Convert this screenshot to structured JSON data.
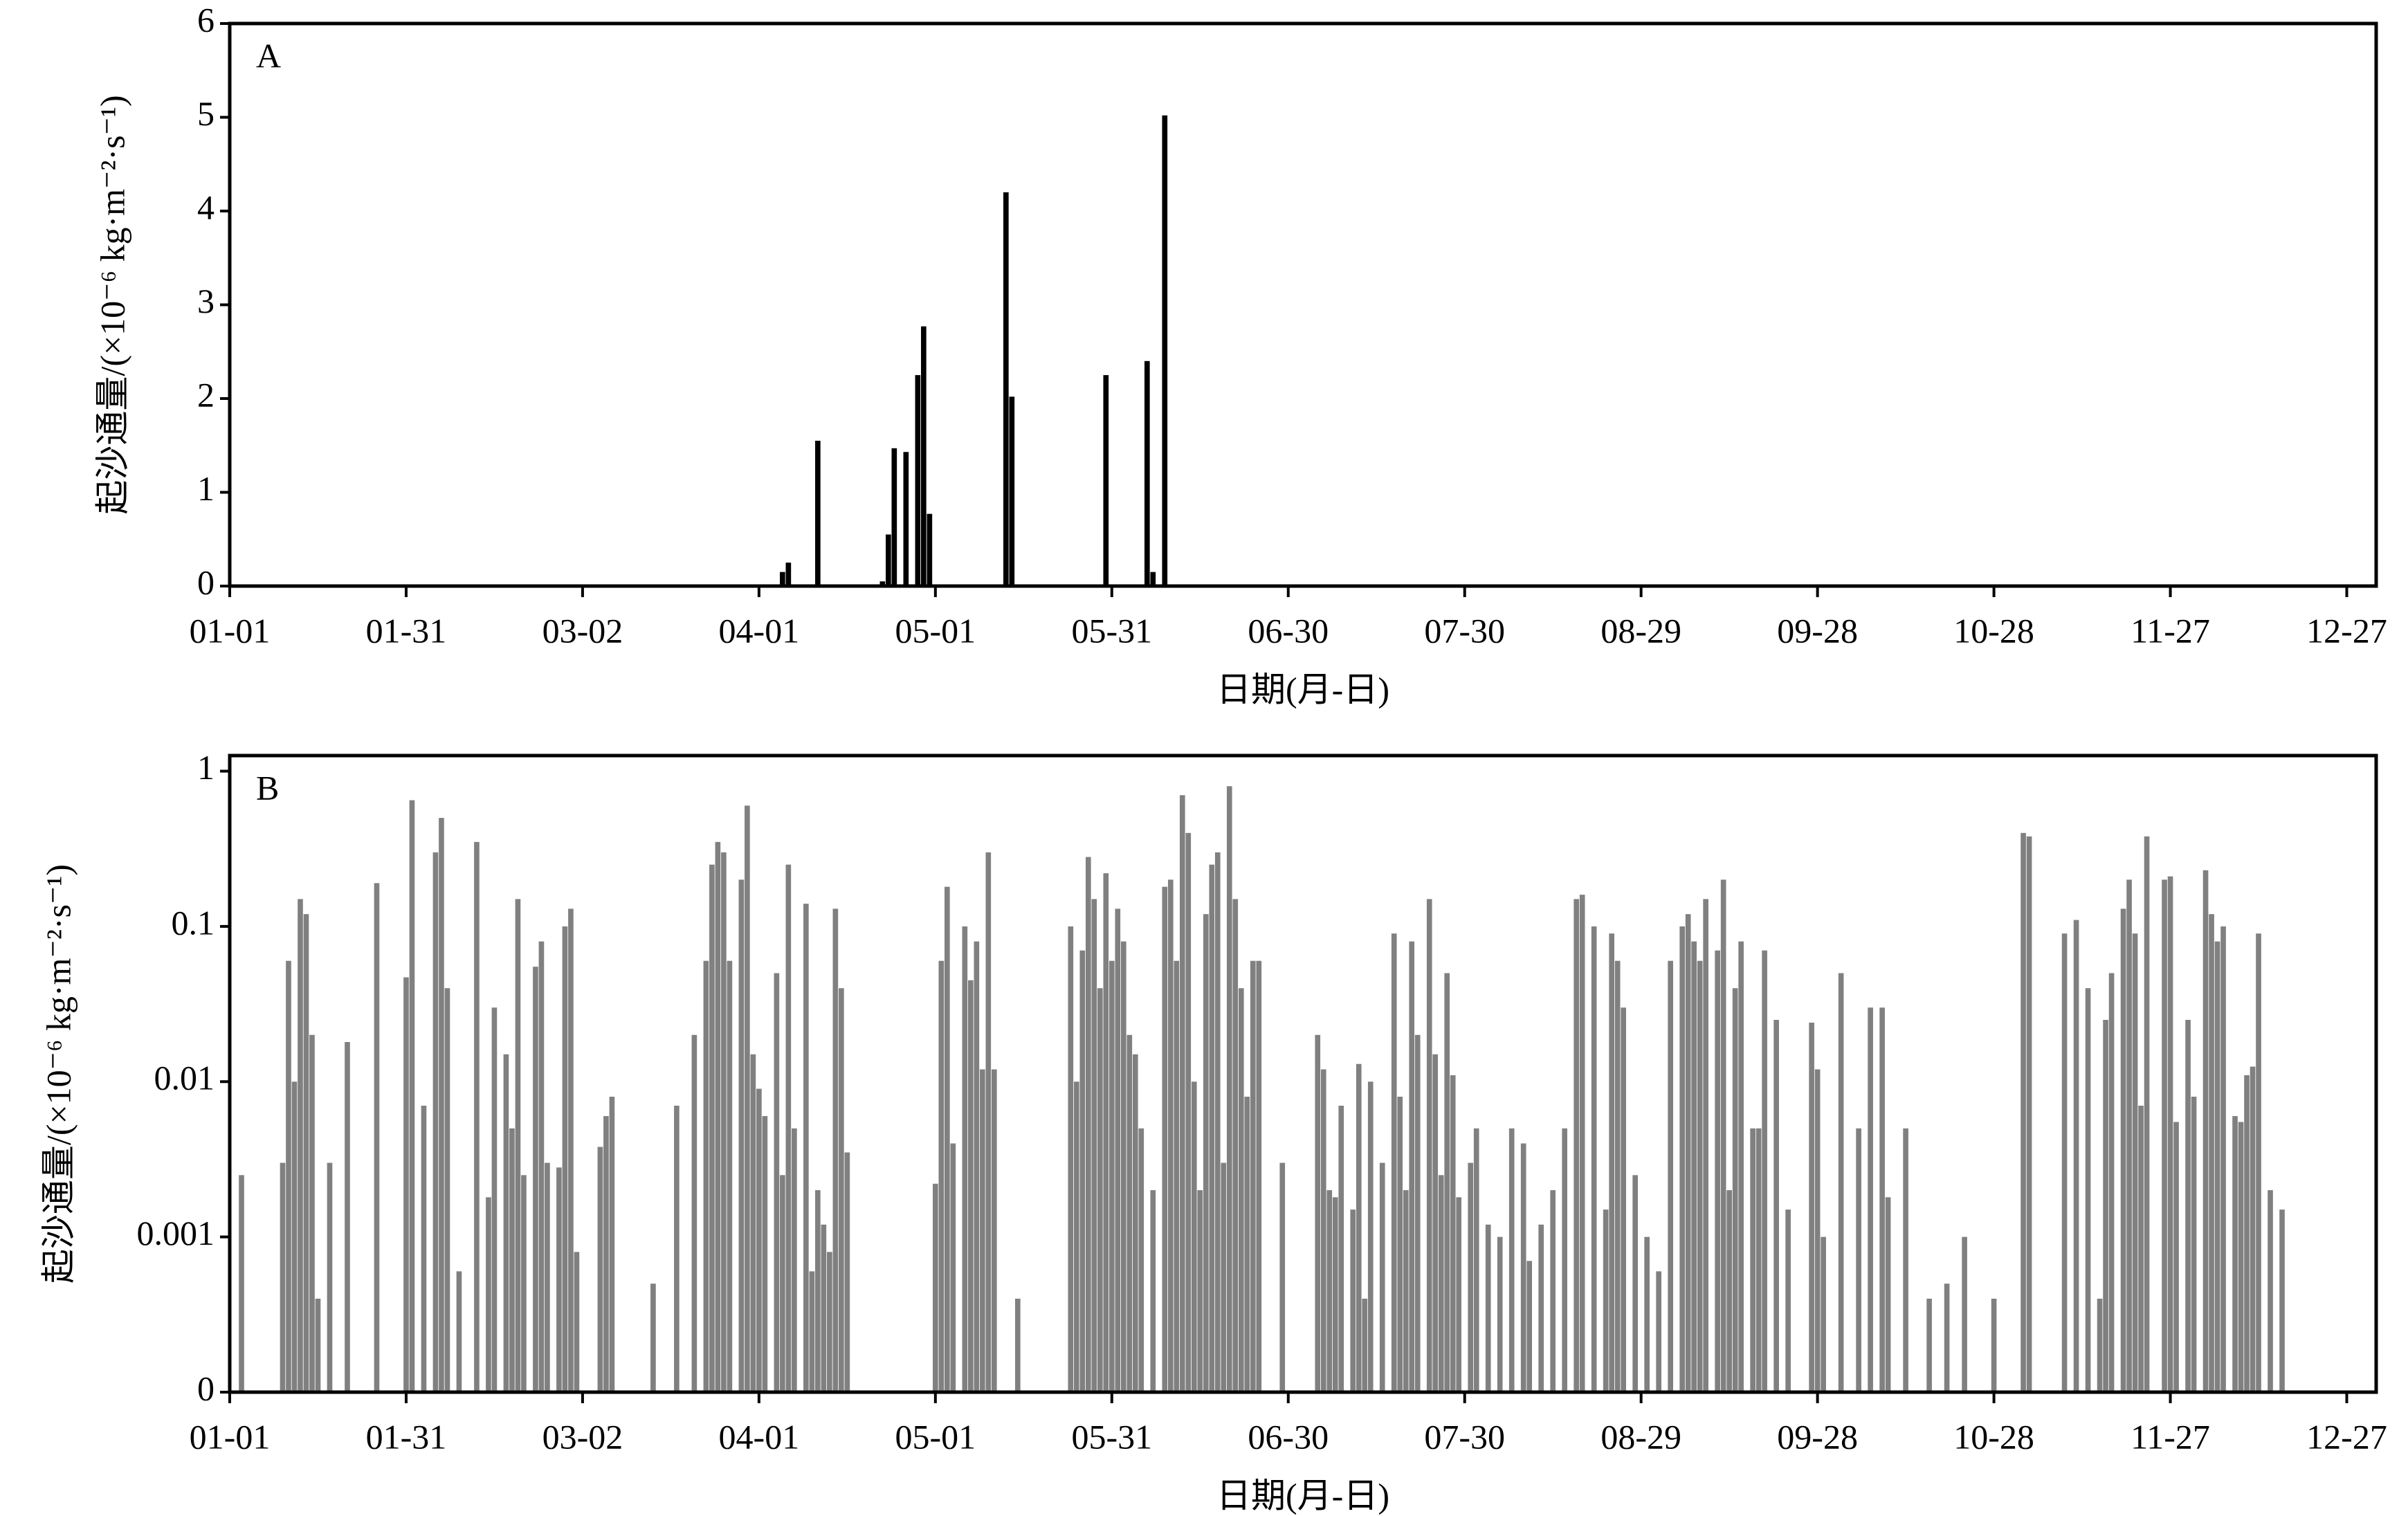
{
  "chart_data": [
    {
      "type": "bar",
      "label": "A",
      "xlabel": "日期(月-日)",
      "ylabel": "起沙通量/(×10⁻⁶ kg·m⁻²·s⁻¹)",
      "color": "#000000",
      "log_scale": false,
      "xlim": [
        1,
        366
      ],
      "ylim": [
        0,
        6
      ],
      "yticks": [
        0,
        1,
        2,
        3,
        4,
        5,
        6
      ],
      "xticks": [
        {
          "value": 1,
          "label": "01-01"
        },
        {
          "value": 31,
          "label": "01-31"
        },
        {
          "value": 61,
          "label": "03-02"
        },
        {
          "value": 91,
          "label": "04-01"
        },
        {
          "value": 121,
          "label": "05-01"
        },
        {
          "value": 151,
          "label": "05-31"
        },
        {
          "value": 181,
          "label": "06-30"
        },
        {
          "value": 211,
          "label": "07-30"
        },
        {
          "value": 241,
          "label": "08-29"
        },
        {
          "value": 271,
          "label": "09-28"
        },
        {
          "value": 301,
          "label": "10-28"
        },
        {
          "value": 331,
          "label": "11-27"
        },
        {
          "value": 361,
          "label": "12-27"
        }
      ],
      "x": [
        95,
        96,
        101,
        112,
        113,
        114,
        116,
        118,
        119,
        120,
        133,
        134,
        150,
        157,
        158,
        160
      ],
      "values": [
        0.15,
        0.25,
        1.55,
        0.05,
        0.55,
        1.47,
        1.43,
        2.25,
        2.77,
        0.77,
        4.2,
        2.02,
        2.25,
        2.4,
        0.15,
        5.02
      ]
    },
    {
      "type": "bar",
      "label": "B",
      "xlabel": "日期(月-日)",
      "ylabel": "起沙通量/(×10⁻⁶ kg·m⁻²·s⁻¹)",
      "color": "#808080",
      "log_scale": true,
      "xlim": [
        1,
        366
      ],
      "ylim": [
        0.0001,
        1.26
      ],
      "yticks": [
        {
          "value": 0.0001,
          "label": "0"
        },
        0.001,
        0.01,
        0.1,
        1
      ],
      "xticks": [
        {
          "value": 1,
          "label": "01-01"
        },
        {
          "value": 31,
          "label": "01-31"
        },
        {
          "value": 61,
          "label": "03-02"
        },
        {
          "value": 91,
          "label": "04-01"
        },
        {
          "value": 121,
          "label": "05-01"
        },
        {
          "value": 151,
          "label": "05-31"
        },
        {
          "value": 181,
          "label": "06-30"
        },
        {
          "value": 211,
          "label": "07-30"
        },
        {
          "value": 241,
          "label": "08-29"
        },
        {
          "value": 271,
          "label": "09-28"
        },
        {
          "value": 301,
          "label": "10-28"
        },
        {
          "value": 331,
          "label": "11-27"
        },
        {
          "value": 361,
          "label": "12-27"
        }
      ],
      "x": [
        3,
        10,
        11,
        12,
        13,
        14,
        15,
        16,
        18,
        21,
        26,
        31,
        32,
        34,
        36,
        37,
        38,
        40,
        43,
        45,
        46,
        48,
        49,
        50,
        51,
        53,
        54,
        55,
        57,
        58,
        59,
        60,
        64,
        65,
        66,
        73,
        77,
        80,
        82,
        83,
        84,
        85,
        86,
        88,
        89,
        90,
        91,
        92,
        94,
        95,
        96,
        97,
        99,
        100,
        101,
        102,
        103,
        104,
        105,
        106,
        121,
        122,
        123,
        124,
        126,
        127,
        128,
        129,
        130,
        131,
        135,
        144,
        145,
        146,
        147,
        148,
        149,
        150,
        151,
        152,
        153,
        154,
        155,
        156,
        158,
        160,
        161,
        162,
        163,
        164,
        165,
        166,
        167,
        168,
        169,
        170,
        171,
        172,
        173,
        174,
        175,
        176,
        180,
        186,
        187,
        188,
        189,
        190,
        192,
        193,
        194,
        195,
        197,
        199,
        200,
        201,
        202,
        203,
        205,
        206,
        207,
        208,
        209,
        210,
        212,
        213,
        215,
        217,
        219,
        221,
        222,
        224,
        226,
        228,
        230,
        231,
        233,
        235,
        236,
        237,
        238,
        240,
        242,
        244,
        246,
        248,
        249,
        250,
        251,
        252,
        254,
        255,
        256,
        257,
        258,
        260,
        261,
        262,
        264,
        266,
        270,
        271,
        272,
        275,
        278,
        280,
        282,
        283,
        286,
        290,
        293,
        296,
        301,
        306,
        307,
        313,
        315,
        317,
        319,
        320,
        321,
        323,
        324,
        325,
        326,
        327,
        330,
        331,
        332,
        334,
        335,
        337,
        338,
        339,
        340,
        342,
        343,
        344,
        345,
        346,
        348,
        350
      ],
      "values": [
        0.0025,
        0.003,
        0.06,
        0.01,
        0.15,
        0.12,
        0.02,
        0.0004,
        0.003,
        0.018,
        0.19,
        0.047,
        0.65,
        0.007,
        0.3,
        0.5,
        0.04,
        0.0006,
        0.35,
        0.0018,
        0.03,
        0.015,
        0.005,
        0.15,
        0.0025,
        0.055,
        0.08,
        0.003,
        0.0028,
        0.1,
        0.13,
        0.0008,
        0.0038,
        0.006,
        0.008,
        0.0005,
        0.007,
        0.02,
        0.06,
        0.25,
        0.35,
        0.3,
        0.06,
        0.2,
        0.6,
        0.015,
        0.009,
        0.006,
        0.05,
        0.0025,
        0.25,
        0.005,
        0.14,
        0.0006,
        0.002,
        0.0012,
        0.0008,
        0.13,
        0.04,
        0.0035,
        0.0022,
        0.06,
        0.18,
        0.004,
        0.1,
        0.045,
        0.08,
        0.012,
        0.3,
        0.012,
        0.0004,
        0.1,
        0.01,
        0.07,
        0.28,
        0.15,
        0.04,
        0.22,
        0.06,
        0.13,
        0.08,
        0.02,
        0.015,
        0.005,
        0.002,
        0.18,
        0.2,
        0.06,
        0.7,
        0.4,
        0.01,
        0.002,
        0.12,
        0.25,
        0.3,
        0.003,
        0.8,
        0.15,
        0.04,
        0.008,
        0.06,
        0.06,
        0.003,
        0.02,
        0.012,
        0.002,
        0.0018,
        0.007,
        0.0015,
        0.013,
        0.0004,
        0.01,
        0.003,
        0.09,
        0.008,
        0.002,
        0.08,
        0.02,
        0.15,
        0.015,
        0.0025,
        0.05,
        0.011,
        0.0018,
        0.003,
        0.005,
        0.0012,
        0.001,
        0.005,
        0.004,
        0.0007,
        0.0012,
        0.002,
        0.005,
        0.15,
        0.16,
        0.1,
        0.0015,
        0.09,
        0.06,
        0.03,
        0.0025,
        0.001,
        0.0006,
        0.06,
        0.1,
        0.12,
        0.08,
        0.06,
        0.15,
        0.07,
        0.2,
        0.002,
        0.04,
        0.08,
        0.005,
        0.005,
        0.07,
        0.025,
        0.0015,
        0.024,
        0.012,
        0.001,
        0.05,
        0.005,
        0.03,
        0.03,
        0.0018,
        0.005,
        0.0004,
        0.0005,
        0.001,
        0.0004,
        0.4,
        0.38,
        0.09,
        0.11,
        0.04,
        0.0004,
        0.025,
        0.05,
        0.13,
        0.2,
        0.09,
        0.007,
        0.38,
        0.2,
        0.21,
        0.0055,
        0.025,
        0.008,
        0.23,
        0.12,
        0.08,
        0.1,
        0.006,
        0.0055,
        0.011,
        0.0125,
        0.09,
        0.002,
        0.0015
      ]
    }
  ]
}
